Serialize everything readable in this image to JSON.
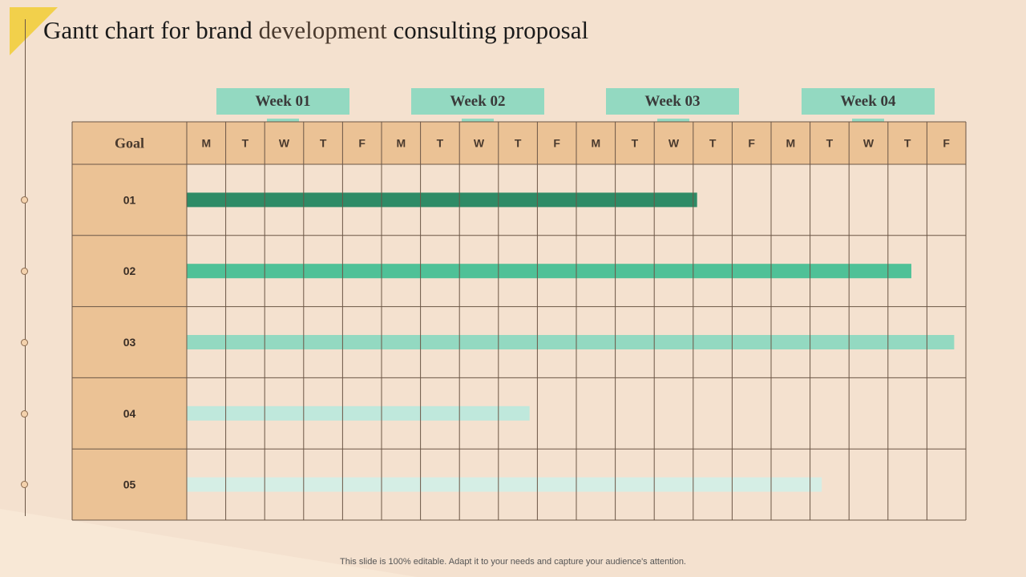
{
  "title": {
    "part1": "Gantt chart for brand ",
    "part2": "development",
    "part3": " consulting proposal"
  },
  "footer": "This slide is 100% editable. Adapt it to your needs and capture your audience's attention.",
  "colors": {
    "background": "#f4e1cf",
    "goal_column": "#ebc295",
    "grid_line": "#6b5646",
    "week_label": "#93d9c1",
    "corner_accent": "#f2d04b"
  },
  "chart_data": {
    "type": "gantt",
    "goal_header": "Goal",
    "weeks": [
      "Week 01",
      "Week 02",
      "Week 03",
      "Week 04"
    ],
    "days": [
      "M",
      "T",
      "W",
      "T",
      "F",
      "M",
      "T",
      "W",
      "T",
      "F",
      "M",
      "T",
      "W",
      "T",
      "F",
      "M",
      "T",
      "W",
      "T",
      "F"
    ],
    "goals": [
      "01",
      "02",
      "03",
      "04",
      "05"
    ],
    "tasks": [
      {
        "goal": "01",
        "start": 0,
        "end": 13.1,
        "color": "#2e8b66"
      },
      {
        "goal": "02",
        "start": 0,
        "end": 18.6,
        "color": "#4fc197"
      },
      {
        "goal": "03",
        "start": 0,
        "end": 19.7,
        "color": "#93d9c1"
      },
      {
        "goal": "04",
        "start": 0,
        "end": 8.8,
        "color": "#bfe8dc"
      },
      {
        "goal": "05",
        "start": 0,
        "end": 16.3,
        "color": "#d5eee5"
      }
    ]
  }
}
